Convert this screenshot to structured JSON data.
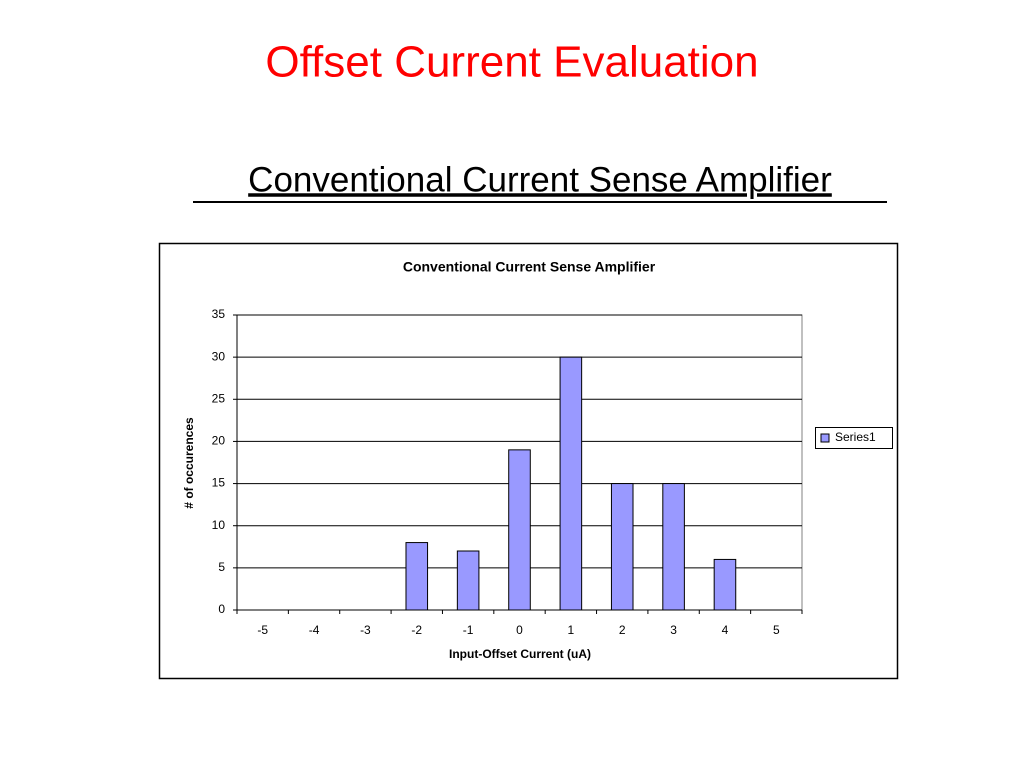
{
  "slide": {
    "title": "Offset Current Evaluation",
    "subtitle": "Conventional Current Sense Amplifier"
  },
  "chart_data": {
    "type": "bar",
    "title": "Conventional Current Sense Amplifier",
    "x_label": "Input-Offset Current (uA)",
    "y_label": "# of occurences",
    "categories": [
      "-5",
      "-4",
      "-3",
      "-2",
      "-1",
      "0",
      "1",
      "2",
      "3",
      "4",
      "5"
    ],
    "series": [
      {
        "name": "Series1",
        "color": "#9999ff",
        "values": [
          0,
          0,
          0,
          8,
          7,
          19,
          30,
          15,
          15,
          6,
          0
        ]
      }
    ],
    "ylim": [
      0,
      35
    ],
    "yticks": [
      0,
      5,
      10,
      15,
      20,
      25,
      30,
      35
    ],
    "grid": true,
    "legend": "right"
  }
}
